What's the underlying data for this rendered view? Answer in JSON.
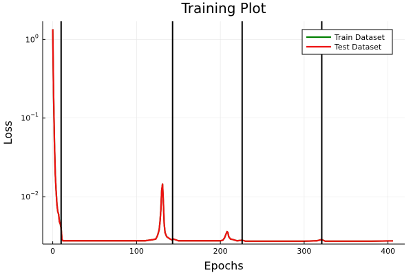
{
  "chart_data": {
    "type": "line",
    "title": "Training Plot",
    "xlabel": "Epochs",
    "ylabel": "Loss",
    "xlim": [
      -12,
      420
    ],
    "ylim": [
      0.0025,
      1.7
    ],
    "yscale": "log",
    "x_ticks": [
      0,
      100,
      200,
      300,
      400
    ],
    "x_tick_labels": [
      "0",
      "100",
      "200",
      "300",
      "400"
    ],
    "y_ticks": [
      {
        "value": 1,
        "base": "10",
        "exp": "0"
      },
      {
        "value": 0.1,
        "base": "10",
        "exp": "−1"
      },
      {
        "value": 0.01,
        "base": "10",
        "exp": "−2"
      }
    ],
    "grid": true,
    "legend_position": "top-right",
    "vlines": [
      10,
      143,
      226,
      321
    ],
    "series": [
      {
        "name": "Train Dataset",
        "color": "#008000",
        "x": [
          0,
          1,
          2,
          3,
          4,
          5,
          6,
          7,
          8,
          9,
          10,
          11,
          12,
          15,
          20,
          40,
          60,
          80,
          100,
          110,
          115,
          120,
          123,
          125,
          127,
          128,
          129,
          130,
          131,
          132,
          133,
          134,
          136,
          140,
          143,
          144,
          150,
          170,
          190,
          200,
          203,
          205,
          207,
          208,
          209,
          210,
          212,
          215,
          220,
          226,
          230,
          260,
          300,
          315,
          318,
          321,
          325,
          350,
          380,
          400,
          406
        ],
        "y": [
          1.35,
          0.2,
          0.05,
          0.02,
          0.012,
          0.008,
          0.0065,
          0.006,
          0.0048,
          0.0045,
          0.004,
          0.0029,
          0.00275,
          0.00275,
          0.00275,
          0.00275,
          0.00275,
          0.00275,
          0.00275,
          0.00275,
          0.0028,
          0.00285,
          0.0029,
          0.0032,
          0.0038,
          0.0048,
          0.0068,
          0.012,
          0.0145,
          0.0085,
          0.0045,
          0.0035,
          0.0031,
          0.0029,
          0.0028,
          0.0029,
          0.00275,
          0.00275,
          0.00275,
          0.00275,
          0.0028,
          0.003,
          0.0034,
          0.0036,
          0.0035,
          0.0031,
          0.0029,
          0.00285,
          0.00275,
          0.0028,
          0.00272,
          0.00272,
          0.00272,
          0.00275,
          0.0028,
          0.00285,
          0.00272,
          0.00272,
          0.00272,
          0.00274,
          0.00274
        ]
      },
      {
        "name": "Test Dataset",
        "color": "#ee1111",
        "x": [
          0,
          1,
          2,
          3,
          4,
          5,
          6,
          7,
          8,
          9,
          10,
          11,
          12,
          15,
          20,
          40,
          60,
          80,
          100,
          110,
          115,
          120,
          123,
          125,
          127,
          128,
          129,
          130,
          131,
          132,
          133,
          134,
          136,
          140,
          143,
          144,
          150,
          170,
          190,
          200,
          203,
          205,
          207,
          208,
          209,
          210,
          212,
          215,
          220,
          226,
          230,
          260,
          300,
          315,
          318,
          321,
          325,
          350,
          380,
          400,
          406
        ],
        "y": [
          1.35,
          0.2,
          0.05,
          0.02,
          0.012,
          0.008,
          0.0065,
          0.006,
          0.0048,
          0.0045,
          0.004,
          0.0029,
          0.00275,
          0.00275,
          0.00275,
          0.00275,
          0.00275,
          0.00275,
          0.00275,
          0.00275,
          0.0028,
          0.00285,
          0.0029,
          0.0032,
          0.0038,
          0.0048,
          0.0068,
          0.012,
          0.0145,
          0.0085,
          0.0045,
          0.0035,
          0.0031,
          0.0029,
          0.0028,
          0.0029,
          0.00275,
          0.00275,
          0.00275,
          0.00275,
          0.0028,
          0.003,
          0.0034,
          0.0036,
          0.0035,
          0.0031,
          0.0029,
          0.00285,
          0.00275,
          0.0028,
          0.00272,
          0.00272,
          0.00272,
          0.00275,
          0.0028,
          0.00285,
          0.00272,
          0.00272,
          0.00272,
          0.00274,
          0.00274
        ]
      }
    ]
  }
}
